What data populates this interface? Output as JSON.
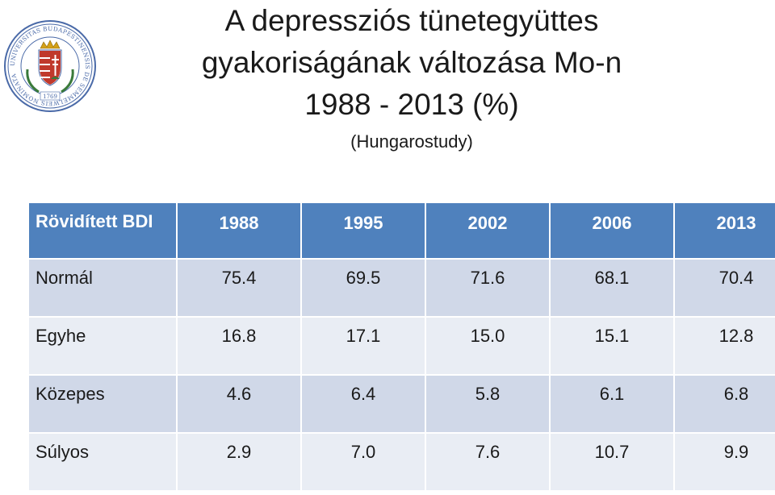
{
  "title": {
    "line1": "A depressziós tünetegyüttes",
    "line2": "gyakoriságának változása Mo-n",
    "line3": "1988 - 2013 (%)",
    "subtitle": "(Hungarostudy)"
  },
  "table": {
    "header": [
      "Rövidített BDI",
      "1988",
      "1995",
      "2002",
      "2006",
      "2013"
    ],
    "rows": [
      {
        "label": "Normál",
        "values": [
          "75.4",
          "69.5",
          "71.6",
          "68.1",
          "70.4"
        ]
      },
      {
        "label": "Egyhe",
        "values": [
          "16.8",
          "17.1",
          "15.0",
          "15.1",
          "12.8"
        ]
      },
      {
        "label": "Közepes",
        "values": [
          "4.6",
          "6.4",
          "5.8",
          "6.1",
          "6.8"
        ]
      },
      {
        "label": "Súlyos",
        "values": [
          "2.9",
          "7.0",
          "7.6",
          "10.7",
          "9.9"
        ]
      }
    ]
  },
  "logo": {
    "name": "university-seal",
    "text": "UNIVERSITAS BUDAPESTINENSIS DE SEMMELWEIS NOMINATA",
    "year": "1769",
    "colors": {
      "primary": "#4a6aa8",
      "red": "#c0392b",
      "gold": "#d4a017",
      "green": "#3a7a3a"
    }
  },
  "colors": {
    "header_bg": "#4f81bd",
    "row_odd": "#d0d8e8",
    "row_even": "#e9edf4"
  }
}
